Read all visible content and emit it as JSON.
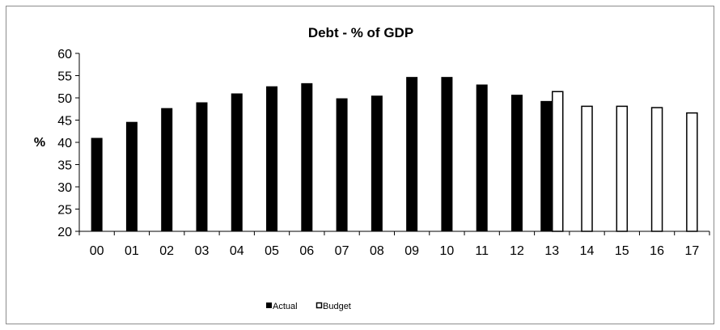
{
  "chart_data": {
    "type": "bar",
    "title": "Debt - % of GDP",
    "xlabel": "",
    "ylabel": "%",
    "ylim": [
      20,
      60
    ],
    "yticks": [
      "20",
      "25",
      "30",
      "35",
      "40",
      "45",
      "50",
      "55",
      "60"
    ],
    "categories": [
      "00",
      "01",
      "02",
      "03",
      "04",
      "05",
      "06",
      "07",
      "08",
      "09",
      "10",
      "11",
      "12",
      "13",
      "14",
      "15",
      "16",
      "17"
    ],
    "grid": false,
    "legend_position": "bottom",
    "series": [
      {
        "name": "Actual",
        "color": "#000000",
        "fill": "solid",
        "values": [
          41.0,
          44.6,
          47.7,
          49.0,
          51.0,
          52.6,
          53.3,
          49.9,
          50.5,
          54.7,
          54.7,
          53.0,
          50.7,
          49.3,
          null,
          null,
          null,
          null
        ]
      },
      {
        "name": "Budget",
        "color": "#000000",
        "fill": "hollow",
        "values": [
          null,
          null,
          null,
          null,
          null,
          null,
          null,
          null,
          null,
          null,
          null,
          null,
          null,
          51.5,
          48.2,
          48.2,
          47.9,
          46.7
        ]
      }
    ]
  }
}
